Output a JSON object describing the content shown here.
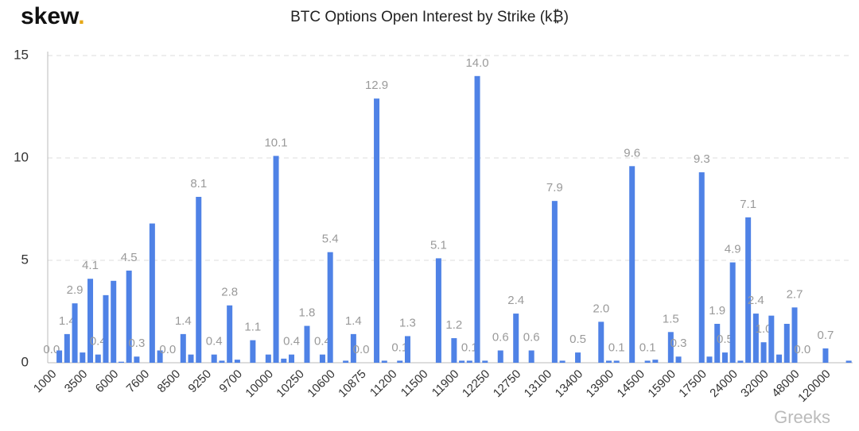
{
  "logo": {
    "name": "skew",
    "dot": "."
  },
  "watermark": "Greeks",
  "chart_data": {
    "type": "bar",
    "title": "BTC Options Open Interest by Strike (k₿)",
    "color": "#4f82e6",
    "grid": true,
    "ylim": [
      0,
      15
    ],
    "yticks": [
      0,
      5,
      10,
      15
    ],
    "categories": [
      "1000",
      null,
      null,
      null,
      "3500",
      null,
      null,
      null,
      "6000",
      null,
      null,
      null,
      "7600",
      null,
      null,
      null,
      "8500",
      null,
      null,
      null,
      "9250",
      null,
      null,
      null,
      "9700",
      null,
      null,
      null,
      "10000",
      null,
      null,
      null,
      "10250",
      null,
      null,
      null,
      "10600",
      null,
      null,
      null,
      "10875",
      null,
      null,
      null,
      "11200",
      null,
      null,
      null,
      "11500",
      null,
      null,
      null,
      "11900",
      null,
      null,
      null,
      "12250",
      null,
      null,
      null,
      "12750",
      null,
      null,
      null,
      "13100",
      null,
      null,
      null,
      "13400",
      null,
      null,
      null,
      "13900",
      null,
      null,
      null,
      "14500",
      null,
      null,
      null,
      "15900",
      null,
      null,
      null,
      "17500",
      null,
      null,
      null,
      "24000",
      null,
      null,
      null,
      "32000",
      null,
      null,
      null,
      "48000",
      null,
      null,
      null,
      "120000",
      null,
      null,
      null
    ],
    "values": [
      0,
      0.6,
      1.4,
      2.9,
      0.5,
      4.1,
      0.4,
      3.3,
      4,
      0.05,
      4.5,
      0.3,
      0,
      6.8,
      0.6,
      0,
      0,
      1.4,
      0.4,
      8.1,
      0,
      0.4,
      0.1,
      2.8,
      0.15,
      0,
      1.1,
      0,
      0.4,
      10.1,
      0.2,
      0.4,
      0,
      1.8,
      0,
      0.4,
      5.4,
      0,
      0.1,
      1.4,
      0,
      0,
      12.9,
      0.1,
      0,
      0.1,
      1.3,
      0,
      0,
      0,
      5.1,
      0,
      1.2,
      0.1,
      0.1,
      14,
      0.1,
      0,
      0.6,
      0,
      2.4,
      0,
      0.6,
      0,
      0,
      7.9,
      0.1,
      0,
      0.5,
      0,
      0,
      2,
      0.1,
      0.1,
      0,
      9.6,
      0,
      0.1,
      0.15,
      0,
      1.5,
      0.3,
      0,
      0,
      9.3,
      0.3,
      1.9,
      0.5,
      4.9,
      0.1,
      7.1,
      2.4,
      1,
      2.3,
      0.4,
      1.9,
      2.7,
      0,
      0,
      0,
      0.7,
      0,
      0,
      0.1
    ],
    "value_labels": [
      "0.0",
      null,
      "1.4",
      "2.9",
      null,
      "4.1",
      "0.4",
      null,
      null,
      null,
      "4.5",
      "0.3",
      null,
      null,
      null,
      "0.0",
      null,
      "1.4",
      null,
      "8.1",
      null,
      "0.4",
      null,
      "2.8",
      null,
      null,
      "1.1",
      null,
      null,
      "10.1",
      null,
      "0.4",
      null,
      "1.8",
      null,
      "0.4",
      "5.4",
      null,
      null,
      "1.4",
      "0.0",
      null,
      "12.9",
      null,
      null,
      "0.1",
      "1.3",
      null,
      null,
      null,
      "5.1",
      null,
      "1.2",
      null,
      "0.1",
      "14.0",
      null,
      null,
      "0.6",
      null,
      "2.4",
      null,
      "0.6",
      null,
      null,
      "7.9",
      null,
      null,
      "0.5",
      null,
      null,
      "2.0",
      null,
      "0.1",
      null,
      "9.6",
      null,
      "0.1",
      null,
      null,
      "1.5",
      "0.3",
      null,
      null,
      "9.3",
      null,
      "1.9",
      "0.5",
      "4.9",
      null,
      "7.1",
      "2.4",
      "1.0",
      null,
      null,
      null,
      "2.7",
      "0.0",
      null,
      null,
      "0.7",
      null,
      null,
      null
    ]
  }
}
